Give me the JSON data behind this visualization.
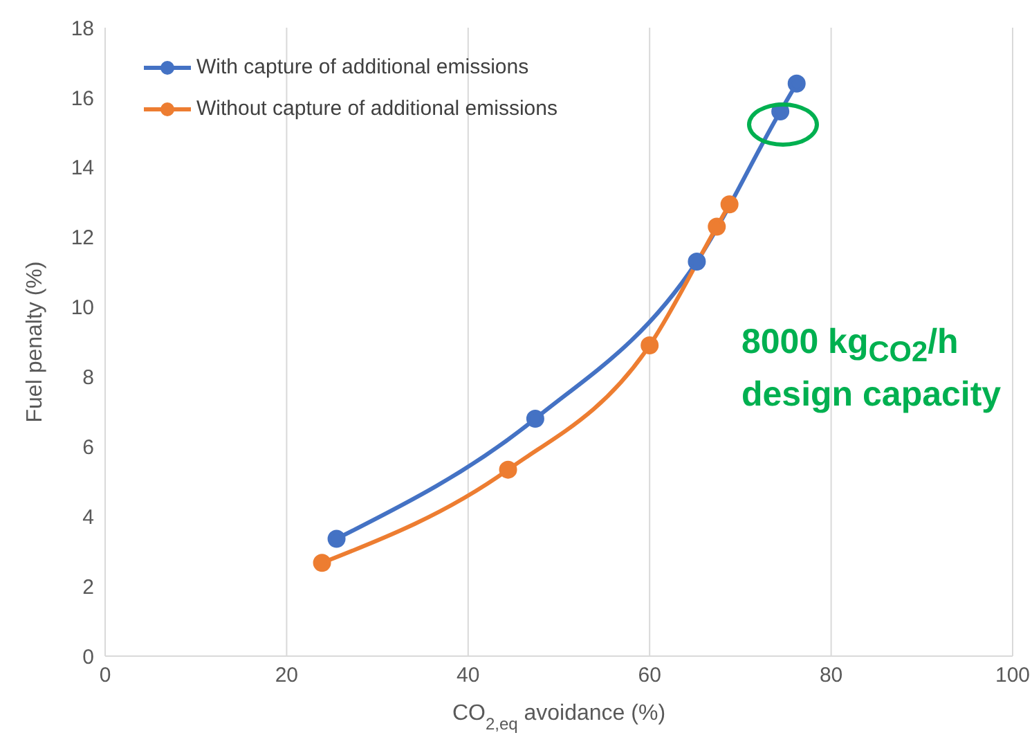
{
  "chart_data": {
    "type": "line",
    "xlabel": "CO$_{2,eq}$ avoidance (%)",
    "ylabel": "Fuel penalty (%)",
    "xlim": [
      0,
      100
    ],
    "xticks": [
      0,
      20,
      40,
      60,
      80,
      100
    ],
    "ylim": [
      0,
      18
    ],
    "yticks": [
      0,
      2,
      4,
      6,
      8,
      10,
      12,
      14,
      16,
      18
    ],
    "grid": "x",
    "legend": "top left",
    "marker": "circle",
    "line_style": "solid",
    "series": [
      {
        "name": "With capture of additional emissions",
        "color": "#4472c4",
        "x": [
          25.5,
          47.4,
          65.2,
          74.4,
          76.2
        ],
        "values": [
          3.36,
          6.8,
          11.3,
          15.6,
          16.4
        ]
      },
      {
        "name": "Without capture of additional emissions",
        "color": "#ed7d31",
        "x": [
          23.9,
          44.4,
          60.0,
          67.4,
          68.8
        ],
        "values": [
          2.67,
          5.34,
          8.9,
          12.3,
          12.94
        ]
      }
    ],
    "annotations": [
      "8000 kg$_{CO2}$/h design capacity"
    ]
  }
}
